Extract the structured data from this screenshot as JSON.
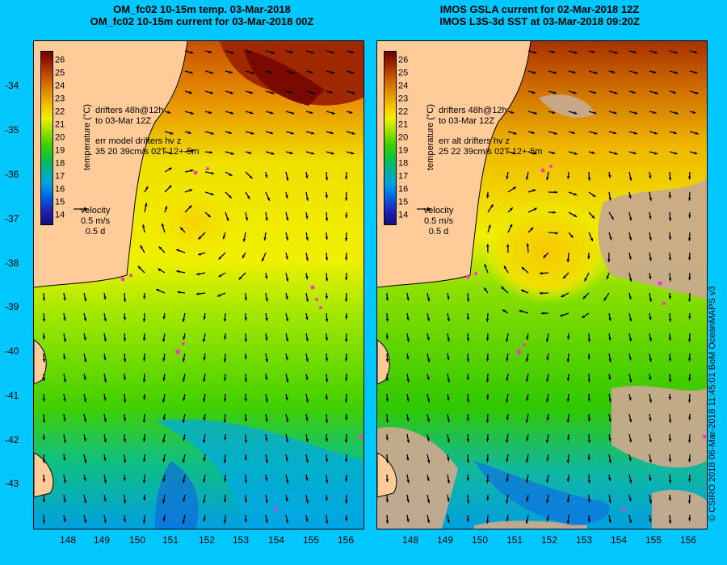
{
  "left_panel": {
    "title_line1": "OM_fc02 10-15m temp. 03-Mar-2018",
    "title_line2": "OM_fc02 10-15m current for 03-Mar-2018 00Z",
    "legend_drifters": [
      "drifters 48h@12h",
      "to 03-Mar 12Z"
    ],
    "legend_err": [
      "err model drifters hv z",
      "35 20 39cm/s 02T 12+-5m"
    ]
  },
  "right_panel": {
    "title_line1": "IMOS GSLA current for 02-Mar-2018 12Z",
    "title_line2": "IMOS L3S-3d SST at 03-Mar-2018 09:20Z",
    "legend_drifters": [
      "drifters 48h@12h",
      "to 03-Mar 12Z"
    ],
    "legend_err": [
      "err alt drifters hv z",
      "25 22 39cm/s 02T 12+-5m"
    ]
  },
  "colorbar": {
    "label": "temperature (°C)",
    "ticks": [
      "26",
      "25",
      "24",
      "23",
      "22",
      "21",
      "20",
      "19",
      "18",
      "17",
      "16",
      "15",
      "14"
    ],
    "colors": [
      "#6e0000",
      "#a02800",
      "#c85a00",
      "#e08c00",
      "#f0c000",
      "#f0f000",
      "#9be000",
      "#40d000",
      "#10c040",
      "#00b0a0",
      "#00a0e0",
      "#0060e0",
      "#2020b0",
      "#101080"
    ]
  },
  "velocity_legend": {
    "title": "velocity",
    "speed": "0.5 m/s",
    "duration": "0.5 d"
  },
  "y_axis_labels": [
    "-34",
    "-35",
    "-36",
    "-37",
    "-38",
    "-39",
    "-40",
    "-41",
    "-42",
    "-43"
  ],
  "x_axis_labels": [
    "148",
    "149",
    "150",
    "151",
    "152",
    "153",
    "154",
    "155",
    "156"
  ],
  "credit": "© CSIRO 2018   06-Mar-2018 11:45:01 BoM OceanMAPS v3",
  "colors": {
    "background": "#00c8ff",
    "land": "#ffcc99",
    "nodata": "#c8aa8c",
    "drifter": "#ff33cc"
  }
}
